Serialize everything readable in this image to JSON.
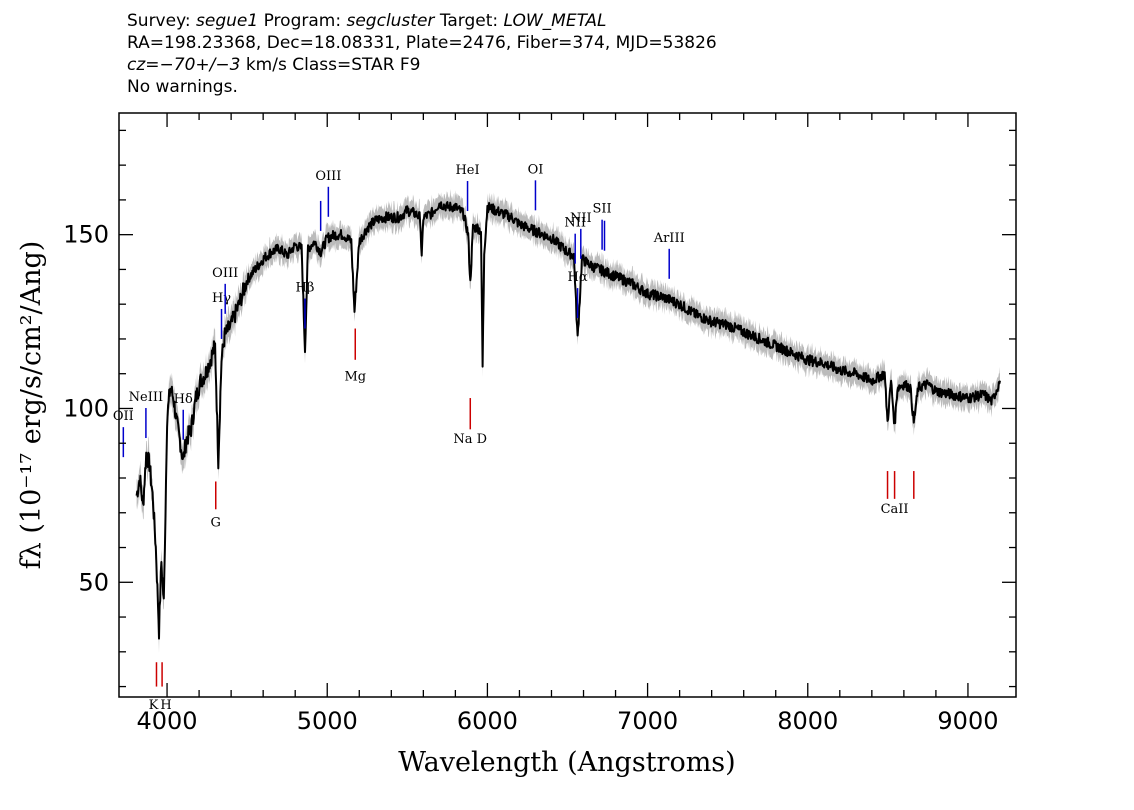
{
  "header": {
    "line1": {
      "survey_label": "Survey:",
      "survey": "segue1",
      "program_label": "Program:",
      "program": "segcluster",
      "target_label": "Target:",
      "target": "LOW_METAL"
    },
    "line2": "RA=198.23368, Dec=18.08331, Plate=2476, Fiber=374, MJD=53826",
    "line3": {
      "cz_label": "cz=",
      "cz": "−70+/−3",
      "rest": " km/s Class=STAR F9"
    },
    "line4": "No warnings."
  },
  "colors": {
    "spectrum": "#000000",
    "error_band": "#bbbbbb",
    "emission": "#0000cc",
    "absorption": "#cc0000"
  },
  "chart_data": {
    "type": "line",
    "title": "",
    "xlabel": "Wavelength (Angstroms)",
    "ylabel": "fλ (10⁻¹⁷ erg/s/cm²/Ang)",
    "xlim": [
      3700,
      9300
    ],
    "ylim": [
      17,
      185
    ],
    "xticks": [
      4000,
      5000,
      6000,
      7000,
      8000,
      9000
    ],
    "yticks": [
      50,
      100,
      150
    ],
    "grid": false,
    "series": [
      {
        "x": [
          3810,
          3830,
          3850,
          3870,
          3890,
          3910,
          3930,
          3950,
          3965,
          3980,
          4000,
          4020,
          4040,
          4060,
          4080,
          4101,
          4120,
          4150,
          4180,
          4210,
          4240,
          4270,
          4300,
          4320,
          4340,
          4360,
          4400,
          4450,
          4500,
          4550,
          4600,
          4650,
          4700,
          4750,
          4800,
          4840,
          4861,
          4880,
          4920,
          4960,
          5000,
          5050,
          5100,
          5150,
          5170,
          5200,
          5250,
          5300,
          5350,
          5400,
          5450,
          5500,
          5550,
          5580,
          5590,
          5600,
          5650,
          5700,
          5750,
          5800,
          5850,
          5880,
          5893,
          5910,
          5940,
          5960,
          5970,
          5980,
          6000,
          6050,
          6100,
          6150,
          6200,
          6250,
          6300,
          6350,
          6400,
          6450,
          6500,
          6540,
          6563,
          6590,
          6650,
          6700,
          6800,
          6900,
          7000,
          7100,
          7200,
          7300,
          7400,
          7500,
          7600,
          7700,
          7800,
          7900,
          8000,
          8100,
          8200,
          8300,
          8400,
          8480,
          8498,
          8520,
          8542,
          8560,
          8600,
          8640,
          8662,
          8690,
          8750,
          8800,
          8900,
          9000,
          9100,
          9150,
          9200
        ],
        "y": [
          75,
          80,
          72,
          87,
          84,
          75,
          60,
          36,
          56,
          44,
          97,
          106,
          103,
          96,
          91,
          85,
          91,
          94,
          103,
          108,
          110,
          114,
          118,
          85,
          114,
          121,
          124,
          130,
          137,
          140,
          143,
          145,
          146,
          144,
          147,
          146,
          117,
          146,
          148,
          145,
          149,
          150,
          150,
          148,
          128,
          148,
          152,
          154,
          155,
          155,
          155,
          157,
          156,
          155,
          143,
          155,
          156,
          159,
          158,
          158,
          156,
          150,
          136,
          152,
          152,
          151,
          112,
          145,
          158,
          157,
          156,
          155,
          153,
          152,
          151,
          150,
          149,
          147,
          145,
          144,
          120,
          143,
          141,
          140,
          138,
          136,
          133,
          132,
          130,
          127,
          125,
          124,
          122,
          120,
          118,
          116,
          114,
          113,
          111,
          110,
          108,
          110,
          96,
          108,
          95,
          106,
          107,
          106,
          96,
          106,
          107,
          105,
          104,
          103,
          104,
          102,
          108
        ]
      }
    ],
    "lines": [
      {
        "name": "OII",
        "lambda": 3727,
        "type": "emission"
      },
      {
        "name": "NeIII",
        "lambda": 3868,
        "type": "emission"
      },
      {
        "name": "K",
        "lambda": 3934,
        "type": "absorption"
      },
      {
        "name": "H",
        "lambda": 3969,
        "type": "absorption"
      },
      {
        "name": "Hδ",
        "lambda": 4101,
        "type": "emission"
      },
      {
        "name": "G",
        "lambda": 4304,
        "type": "absorption"
      },
      {
        "name": "Hγ",
        "lambda": 4340,
        "type": "emission"
      },
      {
        "name": "OIII",
        "lambda": 4363,
        "type": "emission"
      },
      {
        "name": "Hβ",
        "lambda": 4861,
        "type": "emission"
      },
      {
        "name": "OIII",
        "lambda": 4959,
        "type": "emission"
      },
      {
        "name": "OIII",
        "lambda": 5007,
        "type": "emission"
      },
      {
        "name": "Mg",
        "lambda": 5175,
        "type": "absorption"
      },
      {
        "name": "HeI",
        "lambda": 5876,
        "type": "emission"
      },
      {
        "name": "Na D",
        "lambda": 5893,
        "type": "absorption"
      },
      {
        "name": "OI",
        "lambda": 6300,
        "type": "emission"
      },
      {
        "name": "NII",
        "lambda": 6548,
        "type": "emission"
      },
      {
        "name": "Hα",
        "lambda": 6563,
        "type": "emission"
      },
      {
        "name": "NII",
        "lambda": 6583,
        "type": "emission"
      },
      {
        "name": "SII",
        "lambda": 6716,
        "type": "emission"
      },
      {
        "name": "SII",
        "lambda": 6731,
        "type": "emission"
      },
      {
        "name": "ArIII",
        "lambda": 7135,
        "type": "emission"
      },
      {
        "name": "CaII",
        "lambda": 8498,
        "type": "absorption"
      },
      {
        "name": "CaII",
        "lambda": 8542,
        "type": "absorption"
      },
      {
        "name": "CaII",
        "lambda": 8662,
        "type": "absorption"
      }
    ]
  }
}
